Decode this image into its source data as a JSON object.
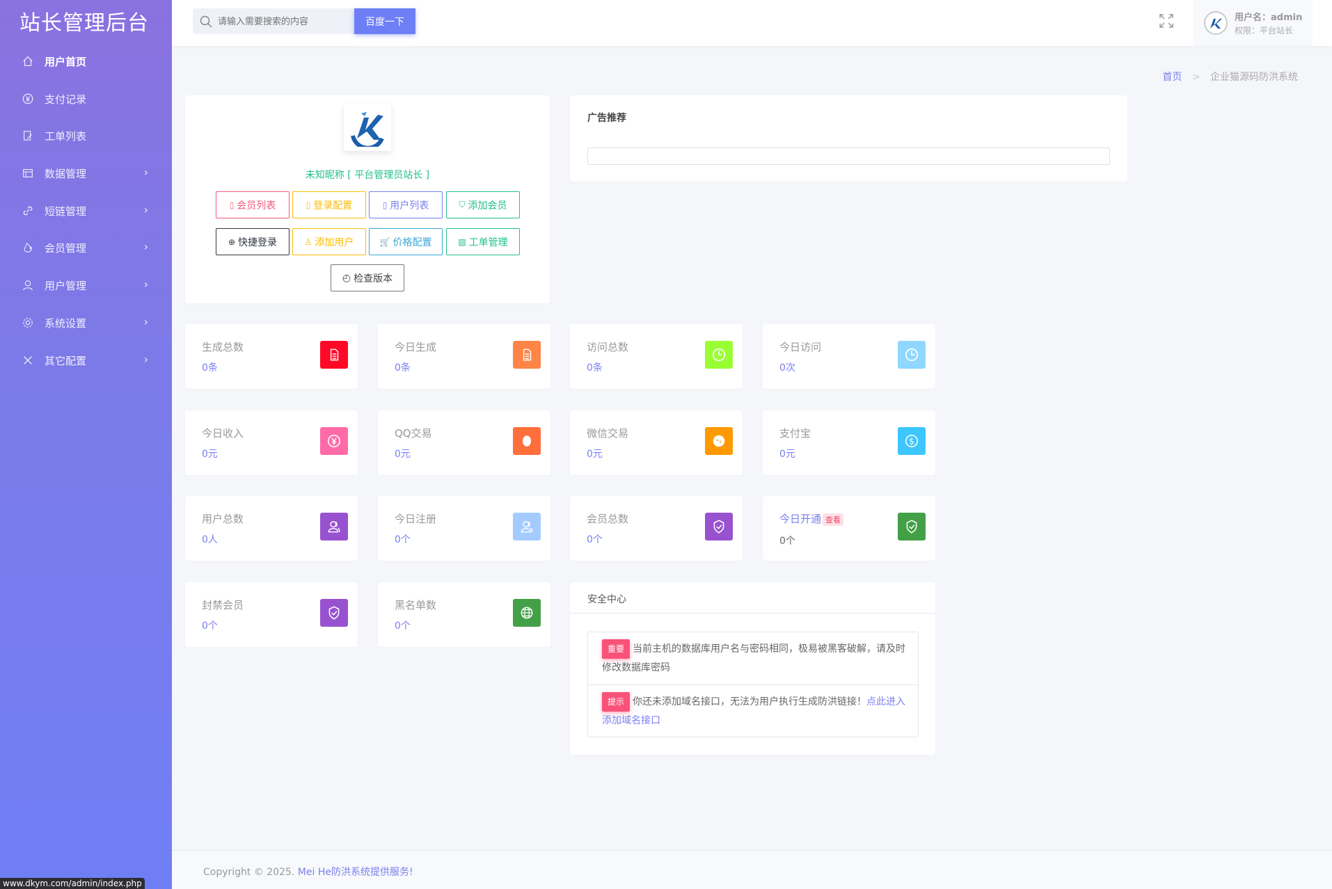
{
  "sidebar": {
    "brand": "站长管理后台",
    "items": [
      {
        "label": "用户首页",
        "icon": "home-icon",
        "active": true
      },
      {
        "label": "支付记录",
        "icon": "yen-icon"
      },
      {
        "label": "工单列表",
        "icon": "ticket-icon"
      },
      {
        "label": "数据管理",
        "icon": "table-icon",
        "submenu": true
      },
      {
        "label": "短链管理",
        "icon": "link-icon",
        "submenu": true
      },
      {
        "label": "会员管理",
        "icon": "fire-icon",
        "submenu": true
      },
      {
        "label": "用户管理",
        "icon": "user-icon",
        "submenu": true
      },
      {
        "label": "系统设置",
        "icon": "gear-icon",
        "submenu": true
      },
      {
        "label": "其它配置",
        "icon": "tools-icon",
        "submenu": true
      }
    ]
  },
  "header": {
    "search_placeholder": "请输入需要搜索的内容",
    "search_button": "百度一下",
    "username": "用户名：admin",
    "role": "权限：平台站长"
  },
  "breadcrumb": {
    "home": "首页",
    "sep": ">",
    "current": "企业猫源码防洪系统"
  },
  "profile": {
    "nickname": "未知昵称 [ 平台管理员站长 ]",
    "buttons": [
      {
        "label": "会员列表",
        "color": "#f35a7a"
      },
      {
        "label": "登录配置",
        "color": "#fbbc05"
      },
      {
        "label": "用户列表",
        "color": "#7a7ff0"
      },
      {
        "label": "添加会员",
        "color": "#21c189"
      },
      {
        "label": "快捷登录",
        "color": "#2f3541"
      },
      {
        "label": "添加用户",
        "color": "#fbbc05"
      },
      {
        "label": "价格配置",
        "color": "#3aa8d8"
      },
      {
        "label": "工单管理",
        "color": "#21c189"
      }
    ],
    "check_version": "检查版本"
  },
  "ad": {
    "title": "广告推荐"
  },
  "stats": [
    {
      "label": "生成总数",
      "value": "0条",
      "color": "#ff0a26",
      "icon": "document-icon"
    },
    {
      "label": "今日生成",
      "value": "0条",
      "color": "#ff8547",
      "icon": "document-icon"
    },
    {
      "label": "访问总数",
      "value": "0条",
      "color": "#99ff33",
      "icon": "clock-icon"
    },
    {
      "label": "今日访问",
      "value": "0次",
      "color": "#8fd7ff",
      "icon": "clock-icon"
    },
    {
      "label": "今日收入",
      "value": "0元",
      "color": "#ff6ba7",
      "icon": "yen-icon"
    },
    {
      "label": "QQ交易",
      "value": "0元",
      "color": "#ff6f3b",
      "icon": "qq-icon"
    },
    {
      "label": "微信交易",
      "value": "0元",
      "color": "#ff9900",
      "icon": "wechat-icon"
    },
    {
      "label": "支付宝",
      "value": "0元",
      "color": "#3dc6ff",
      "icon": "dollar-icon"
    },
    {
      "label": "用户总数",
      "value": "0人",
      "color": "#9852d0",
      "icon": "users-icon"
    },
    {
      "label": "今日注册",
      "value": "0个",
      "color": "#a3cbff",
      "icon": "users-icon"
    },
    {
      "label": "会员总数",
      "value": "0个",
      "color": "#9852d0",
      "icon": "shield-check-icon"
    },
    {
      "label": "今日开通",
      "value": "0个",
      "color": "#43a047",
      "icon": "shield-check-icon",
      "tag": "查看"
    },
    {
      "label": "封禁会员",
      "value": "0个",
      "color": "#9852d0",
      "icon": "shield-check-icon"
    },
    {
      "label": "黑名单数",
      "value": "0个",
      "color": "#43a047",
      "icon": "globe-icon"
    }
  ],
  "security": {
    "title": "安全中心",
    "messages": [
      {
        "badge": "重要",
        "text": "当前主机的数据库用户名与密码相同，极易被黑客破解，请及时修改数据库密码"
      },
      {
        "badge": "提示",
        "text": "你还未添加域名接口，无法为用户执行生成防洪链接！",
        "link": "点此进入添加域名接口"
      }
    ]
  },
  "footer": {
    "copyright": "Copyright © 2025.",
    "link": "Mei He防洪系统提供服务!"
  },
  "status_url": "www.dkym.com/admin/index.php"
}
